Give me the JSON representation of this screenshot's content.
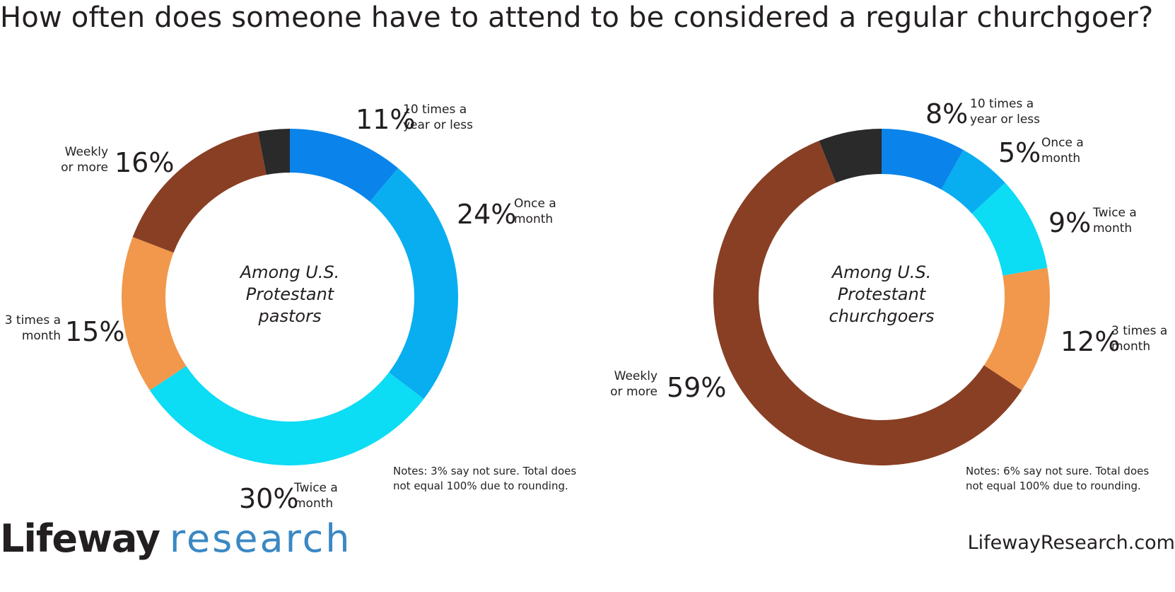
{
  "title": "How often does someone have to attend to be considered a regular churchgoer?",
  "chart_data": [
    {
      "type": "donut",
      "center_label": [
        "Among U.S.",
        "Protestant",
        "pastors"
      ],
      "segments": [
        {
          "name": "10 times a year or less",
          "label_lines": [
            "10 times a",
            "year or less"
          ],
          "value": 11,
          "display": "11%",
          "color": "#0a84ea"
        },
        {
          "name": "Once a month",
          "label_lines": [
            "Once a",
            "month"
          ],
          "value": 24,
          "display": "24%",
          "color": "#08aef0"
        },
        {
          "name": "Twice a month",
          "label_lines": [
            "Twice a",
            "month"
          ],
          "value": 30,
          "display": "30%",
          "color": "#0cdcf4"
        },
        {
          "name": "3 times a month",
          "label_lines": [
            "3 times a",
            "month"
          ],
          "value": 15,
          "display": "15%",
          "color": "#f1984c"
        },
        {
          "name": "Weekly or more",
          "label_lines": [
            "Weekly",
            "or more"
          ],
          "value": 16,
          "display": "16%",
          "color": "#893f24"
        },
        {
          "name": "Not sure",
          "value": 3,
          "color": "#2a2a2a"
        }
      ],
      "note": [
        "Notes: 3% say not sure. Total does",
        "not equal 100% due to rounding."
      ]
    },
    {
      "type": "donut",
      "center_label": [
        "Among U.S.",
        "Protestant",
        "churchgoers"
      ],
      "segments": [
        {
          "name": "10 times a year or less",
          "label_lines": [
            "10 times a",
            "year or less"
          ],
          "value": 8,
          "display": "8%",
          "color": "#0a84ea"
        },
        {
          "name": "Once a month",
          "label_lines": [
            "Once a",
            "month"
          ],
          "value": 5,
          "display": "5%",
          "color": "#08aef0"
        },
        {
          "name": "Twice a month",
          "label_lines": [
            "Twice a",
            "month"
          ],
          "value": 9,
          "display": "9%",
          "color": "#0cdcf4"
        },
        {
          "name": "3 times a month",
          "label_lines": [
            "3 times a",
            "month"
          ],
          "value": 12,
          "display": "12%",
          "color": "#f1984c"
        },
        {
          "name": "Weekly or more",
          "label_lines": [
            "Weekly",
            "or more"
          ],
          "value": 59,
          "display": "59%",
          "color": "#893f24"
        },
        {
          "name": "Not sure",
          "value": 6,
          "color": "#2a2a2a"
        }
      ],
      "note": [
        "Notes: 6% say not sure. Total does",
        "not equal 100% due to rounding."
      ]
    }
  ],
  "brand": {
    "part1": "Lifeway",
    "part2": "research"
  },
  "url": "LifewayResearch.com"
}
